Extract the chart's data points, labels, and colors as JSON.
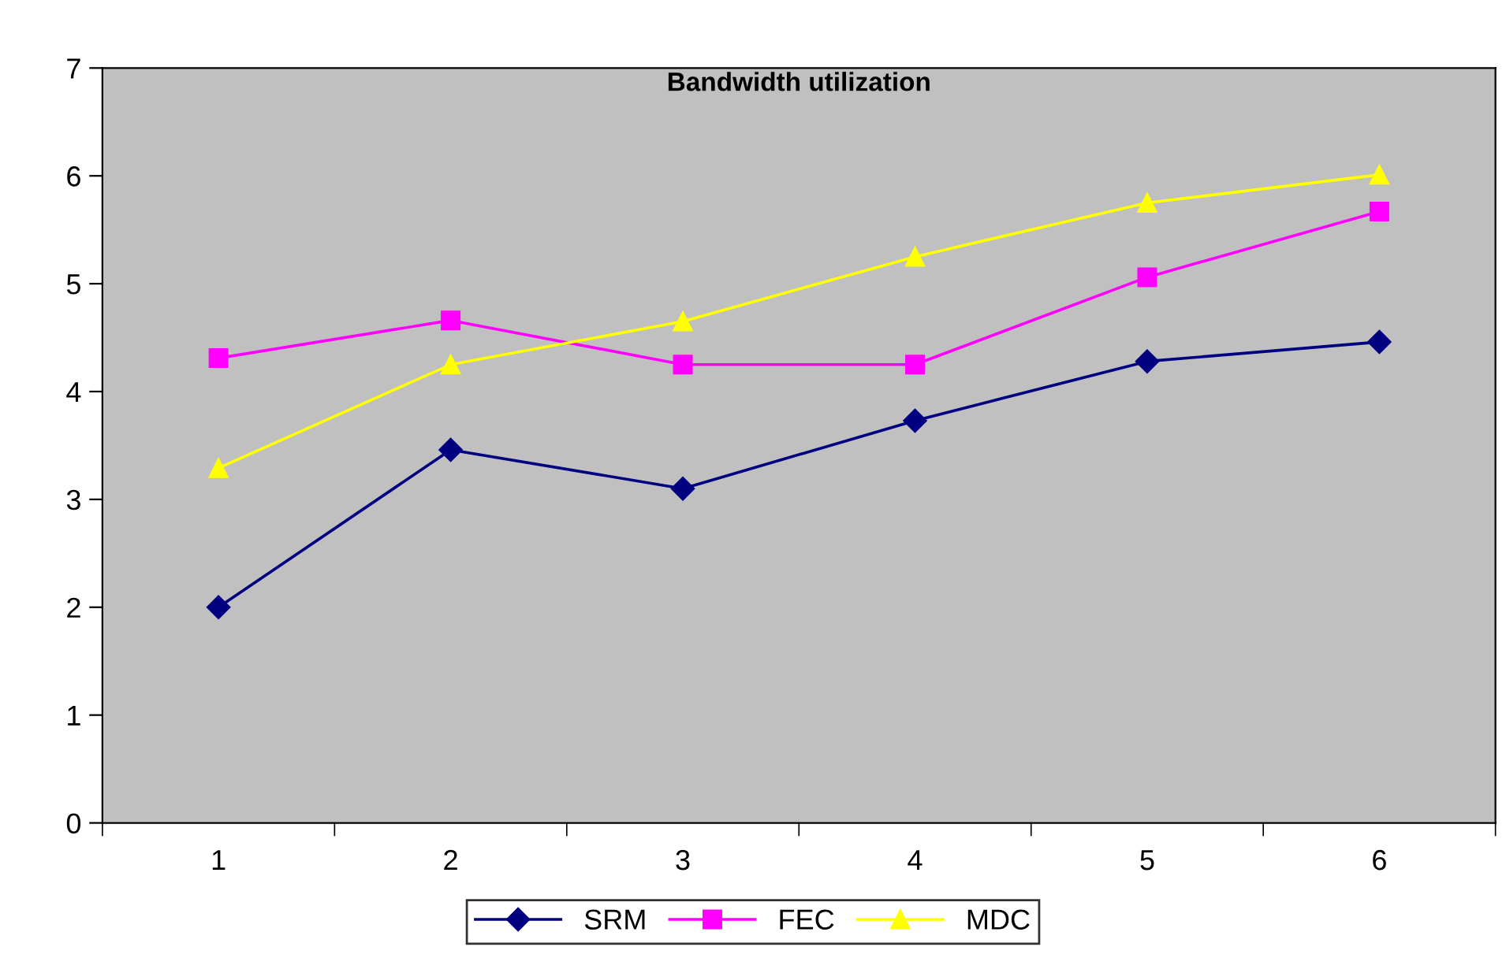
{
  "chart_data": {
    "type": "line",
    "title": "Bandwidth utilization",
    "categories": [
      "1",
      "2",
      "3",
      "4",
      "5",
      "6"
    ],
    "series": [
      {
        "name": "SRM",
        "color": "#000080",
        "marker": "diamond",
        "values": [
          2.0,
          3.46,
          3.1,
          3.73,
          4.28,
          4.46
        ]
      },
      {
        "name": "FEC",
        "color": "#ff00ff",
        "marker": "square",
        "values": [
          4.31,
          4.66,
          4.25,
          4.25,
          5.06,
          5.67
        ]
      },
      {
        "name": "MDC",
        "color": "#ffff00",
        "marker": "triangle",
        "values": [
          3.29,
          4.25,
          4.65,
          5.25,
          5.75,
          6.01
        ]
      }
    ],
    "ylim": [
      0,
      7
    ],
    "yticks": [
      0,
      1,
      2,
      3,
      4,
      5,
      6,
      7
    ],
    "grid": false,
    "legend": "bottom",
    "line_style": "solid"
  }
}
